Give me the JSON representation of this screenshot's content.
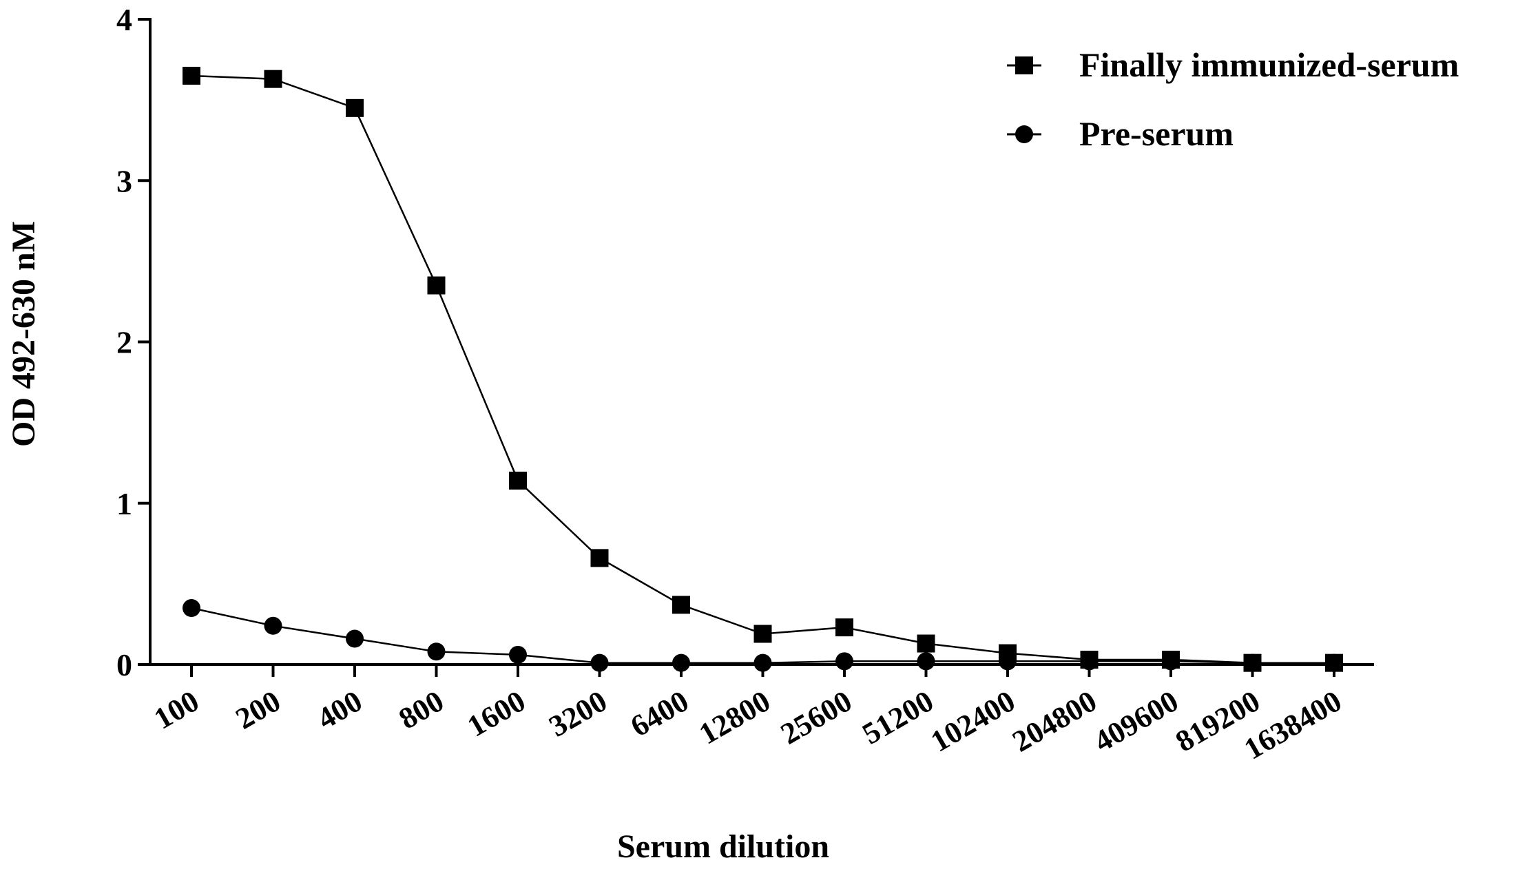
{
  "chart_data": {
    "type": "line",
    "title": "",
    "xlabel": "Serum dilution",
    "ylabel": "OD 492-630 nM",
    "categories": [
      "100",
      "200",
      "400",
      "800",
      "1600",
      "3200",
      "6400",
      "12800",
      "25600",
      "51200",
      "102400",
      "204800",
      "409600",
      "819200",
      "1638400"
    ],
    "ylim": [
      0,
      4
    ],
    "yticks": [
      "0",
      "1",
      "2",
      "3",
      "4"
    ],
    "grid": false,
    "legend_position": "top-right",
    "series": [
      {
        "name": "Finally immunized-serum",
        "marker": "square",
        "color": "#000000",
        "values": [
          3.65,
          3.63,
          3.45,
          2.35,
          1.14,
          0.66,
          0.37,
          0.19,
          0.23,
          0.13,
          0.07,
          0.03,
          0.03,
          0.01,
          0.01
        ]
      },
      {
        "name": "Pre-serum",
        "marker": "circle",
        "color": "#000000",
        "values": [
          0.35,
          0.24,
          0.16,
          0.08,
          0.06,
          0.01,
          0.01,
          0.01,
          0.02,
          0.02,
          0.02,
          0.02,
          0.02,
          0.01,
          0.01
        ]
      }
    ]
  }
}
